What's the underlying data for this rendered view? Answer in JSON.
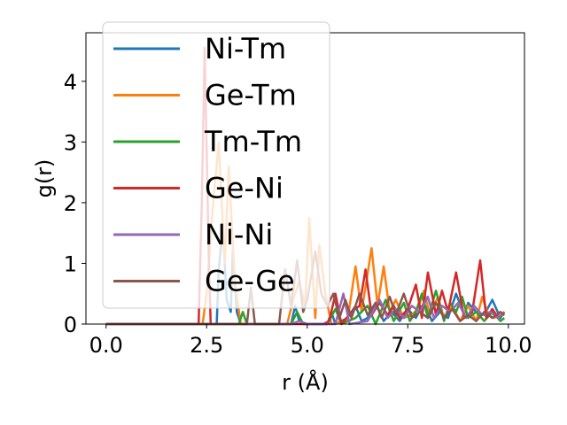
{
  "chart_data": {
    "type": "line",
    "xlabel": "r (Å)",
    "ylabel": "g(r)",
    "xlim": [
      -0.5,
      10.4
    ],
    "ylim": [
      0,
      4.8
    ],
    "x_ticks": [
      "0.0",
      "2.5",
      "5.0",
      "7.5",
      "10.0"
    ],
    "y_ticks": [
      "0",
      "1",
      "2",
      "3",
      "4"
    ],
    "legend_position": "top-left",
    "grid": false,
    "series": [
      {
        "name": "Ni-Tm",
        "color": "#1f77b4",
        "points": [
          [
            0,
            0
          ],
          [
            2.5,
            0
          ],
          [
            2.75,
            0
          ],
          [
            2.8,
            0.9
          ],
          [
            2.9,
            1.6
          ],
          [
            3.0,
            0.4
          ],
          [
            3.1,
            0.2
          ],
          [
            3.15,
            1.25
          ],
          [
            3.25,
            0.2
          ],
          [
            3.35,
            0
          ],
          [
            4.6,
            0
          ],
          [
            4.7,
            0.3
          ],
          [
            4.8,
            0.05
          ],
          [
            5.0,
            0
          ],
          [
            5.5,
            0
          ],
          [
            5.6,
            0.2
          ],
          [
            5.7,
            0
          ],
          [
            6.0,
            0.1
          ],
          [
            6.2,
            0.3
          ],
          [
            6.35,
            0.05
          ],
          [
            6.5,
            0.1
          ],
          [
            6.7,
            0.35
          ],
          [
            6.9,
            0.05
          ],
          [
            7.1,
            0.2
          ],
          [
            7.3,
            0.05
          ],
          [
            7.5,
            0.25
          ],
          [
            7.7,
            0.1
          ],
          [
            7.9,
            0.35
          ],
          [
            8.1,
            0.05
          ],
          [
            8.3,
            0.2
          ],
          [
            8.5,
            0.1
          ],
          [
            8.7,
            0.5
          ],
          [
            8.9,
            0.15
          ],
          [
            9.0,
            0.35
          ],
          [
            9.2,
            0.2
          ],
          [
            9.4,
            0.15
          ],
          [
            9.6,
            0.4
          ],
          [
            9.8,
            0.1
          ],
          [
            9.9,
            0.2
          ]
        ]
      },
      {
        "name": "Ge-Tm",
        "color": "#ff7f0e",
        "points": [
          [
            0,
            0
          ],
          [
            2.4,
            0
          ],
          [
            2.5,
            0.5
          ],
          [
            2.65,
            1.9
          ],
          [
            2.8,
            3.0
          ],
          [
            2.95,
            1.0
          ],
          [
            3.05,
            2.6
          ],
          [
            3.2,
            0.7
          ],
          [
            3.35,
            0
          ],
          [
            4.5,
            0
          ],
          [
            4.65,
            0.4
          ],
          [
            4.8,
            0.7
          ],
          [
            4.95,
            0.3
          ],
          [
            5.05,
            1.75
          ],
          [
            5.2,
            0.1
          ],
          [
            5.3,
            1.3
          ],
          [
            5.45,
            0.5
          ],
          [
            5.6,
            0
          ],
          [
            6.0,
            0.05
          ],
          [
            6.2,
            0.95
          ],
          [
            6.35,
            0.2
          ],
          [
            6.6,
            1.25
          ],
          [
            6.75,
            0.3
          ],
          [
            6.9,
            0.95
          ],
          [
            7.05,
            0.2
          ],
          [
            7.2,
            0.4
          ],
          [
            7.4,
            0.1
          ],
          [
            7.6,
            0.15
          ],
          [
            7.75,
            0.25
          ],
          [
            7.9,
            0.55
          ],
          [
            8.05,
            0.15
          ],
          [
            8.25,
            0.45
          ],
          [
            8.4,
            0.1
          ],
          [
            8.6,
            0.3
          ],
          [
            8.8,
            0.05
          ],
          [
            9.0,
            0.3
          ],
          [
            9.2,
            0.05
          ],
          [
            9.35,
            0.45
          ],
          [
            9.5,
            0.15
          ],
          [
            9.65,
            0.1
          ],
          [
            9.8,
            0.15
          ],
          [
            9.9,
            0.15
          ]
        ]
      },
      {
        "name": "Tm-Tm",
        "color": "#2ca02c",
        "points": [
          [
            0,
            0
          ],
          [
            3.3,
            0
          ],
          [
            3.4,
            0.2
          ],
          [
            3.5,
            0
          ],
          [
            4.6,
            0
          ],
          [
            4.75,
            0.2
          ],
          [
            4.9,
            0
          ],
          [
            5.5,
            0
          ],
          [
            5.7,
            0.25
          ],
          [
            5.85,
            0
          ],
          [
            6.2,
            0.1
          ],
          [
            6.5,
            0.3
          ],
          [
            6.7,
            0
          ],
          [
            6.95,
            0.4
          ],
          [
            7.15,
            0.05
          ],
          [
            7.4,
            0.35
          ],
          [
            7.55,
            0.05
          ],
          [
            7.7,
            0.2
          ],
          [
            7.85,
            0.5
          ],
          [
            8.0,
            0.1
          ],
          [
            8.2,
            0.55
          ],
          [
            8.4,
            0.05
          ],
          [
            8.55,
            0.35
          ],
          [
            8.7,
            0.2
          ],
          [
            8.85,
            0.45
          ],
          [
            9.0,
            0.1
          ],
          [
            9.2,
            0.2
          ],
          [
            9.4,
            0.05
          ],
          [
            9.6,
            0.2
          ],
          [
            9.8,
            0.05
          ],
          [
            9.9,
            0.1
          ]
        ]
      },
      {
        "name": "Ge-Ni",
        "color": "#d62728",
        "points": [
          [
            0,
            0
          ],
          [
            2.3,
            0
          ],
          [
            2.38,
            2.0
          ],
          [
            2.45,
            4.55
          ],
          [
            2.55,
            1.2
          ],
          [
            2.6,
            0
          ],
          [
            5.4,
            0
          ],
          [
            5.55,
            0.05
          ],
          [
            5.7,
            0.5
          ],
          [
            5.85,
            0
          ],
          [
            6.1,
            0.2
          ],
          [
            6.3,
            0.3
          ],
          [
            6.45,
            0.9
          ],
          [
            6.6,
            0.15
          ],
          [
            6.8,
            0.35
          ],
          [
            7.0,
            0.15
          ],
          [
            7.15,
            0.3
          ],
          [
            7.3,
            0.1
          ],
          [
            7.5,
            0.25
          ],
          [
            7.7,
            0.65
          ],
          [
            7.85,
            0.1
          ],
          [
            8.0,
            0.85
          ],
          [
            8.2,
            0.15
          ],
          [
            8.35,
            0.55
          ],
          [
            8.5,
            0.2
          ],
          [
            8.7,
            0.85
          ],
          [
            8.9,
            0.1
          ],
          [
            9.1,
            0.2
          ],
          [
            9.3,
            1.05
          ],
          [
            9.45,
            0.1
          ],
          [
            9.6,
            0.25
          ],
          [
            9.75,
            0.1
          ],
          [
            9.9,
            0.2
          ]
        ]
      },
      {
        "name": "Ni-Ni",
        "color": "#9467bd",
        "points": [
          [
            0,
            0
          ],
          [
            4.6,
            0
          ],
          [
            4.8,
            0.05
          ],
          [
            5.0,
            0
          ],
          [
            5.7,
            0
          ],
          [
            5.9,
            0.5
          ],
          [
            6.05,
            0
          ],
          [
            6.5,
            0.05
          ],
          [
            6.8,
            0.4
          ],
          [
            7.0,
            0.1
          ],
          [
            7.2,
            0.25
          ],
          [
            7.4,
            0.1
          ],
          [
            7.6,
            0.3
          ],
          [
            7.8,
            0.2
          ],
          [
            8.0,
            0.45
          ],
          [
            8.15,
            0.1
          ],
          [
            8.35,
            0.3
          ],
          [
            8.55,
            0.2
          ],
          [
            8.75,
            0.35
          ],
          [
            8.95,
            0.1
          ],
          [
            9.15,
            0.3
          ],
          [
            9.35,
            0.15
          ],
          [
            9.55,
            0.2
          ],
          [
            9.75,
            0.1
          ],
          [
            9.9,
            0.2
          ]
        ]
      },
      {
        "name": "Ge-Ge",
        "color": "#8c564b",
        "points": [
          [
            0,
            0
          ],
          [
            3.5,
            0
          ],
          [
            3.6,
            0.6
          ],
          [
            3.7,
            0
          ],
          [
            4.3,
            0
          ],
          [
            4.45,
            0.9
          ],
          [
            4.6,
            0.3
          ],
          [
            4.75,
            1.05
          ],
          [
            4.9,
            0.2
          ],
          [
            5.0,
            0.4
          ],
          [
            5.2,
            1.2
          ],
          [
            5.35,
            0.5
          ],
          [
            5.5,
            0.3
          ],
          [
            5.65,
            0.5
          ],
          [
            5.8,
            0.1
          ],
          [
            5.95,
            0.4
          ],
          [
            6.1,
            0.1
          ],
          [
            6.3,
            0.5
          ],
          [
            6.5,
            0.15
          ],
          [
            6.7,
            0.35
          ],
          [
            6.85,
            0.1
          ],
          [
            7.05,
            0.45
          ],
          [
            7.2,
            0.15
          ],
          [
            7.4,
            0.5
          ],
          [
            7.6,
            0.1
          ],
          [
            7.8,
            0.2
          ],
          [
            8.0,
            0.1
          ],
          [
            8.2,
            0.35
          ],
          [
            8.4,
            0.1
          ],
          [
            8.6,
            0.25
          ],
          [
            8.8,
            0.05
          ],
          [
            9.0,
            0.15
          ],
          [
            9.2,
            0.05
          ],
          [
            9.4,
            0.2
          ],
          [
            9.6,
            0.1
          ],
          [
            9.8,
            0.2
          ],
          [
            9.9,
            0.15
          ]
        ]
      }
    ]
  }
}
